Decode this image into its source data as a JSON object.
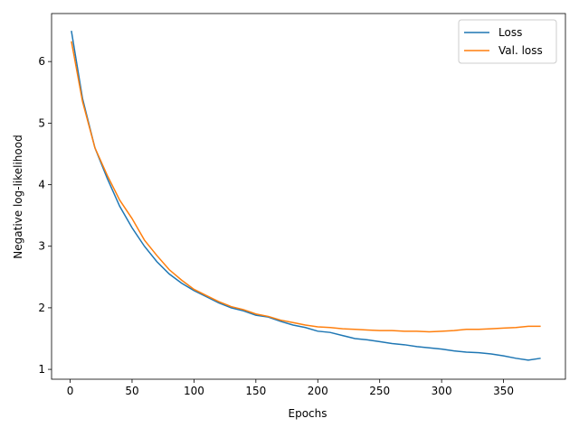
{
  "chart_data": {
    "type": "line",
    "xlabel": "Epochs",
    "ylabel": "Negative log-likelihood",
    "x": [
      1,
      10,
      20,
      30,
      40,
      50,
      60,
      70,
      80,
      90,
      100,
      110,
      120,
      130,
      140,
      150,
      160,
      170,
      180,
      190,
      200,
      210,
      220,
      230,
      240,
      250,
      260,
      270,
      280,
      290,
      300,
      310,
      320,
      330,
      340,
      350,
      360,
      370,
      380
    ],
    "series": [
      {
        "name": "Loss",
        "color": "#1f77b4",
        "values": [
          6.5,
          5.4,
          4.6,
          4.1,
          3.65,
          3.3,
          3.0,
          2.75,
          2.55,
          2.4,
          2.28,
          2.18,
          2.08,
          2.0,
          1.95,
          1.88,
          1.85,
          1.78,
          1.72,
          1.68,
          1.62,
          1.6,
          1.55,
          1.5,
          1.48,
          1.45,
          1.42,
          1.4,
          1.37,
          1.35,
          1.33,
          1.3,
          1.28,
          1.27,
          1.25,
          1.22,
          1.18,
          1.15,
          1.18
        ]
      },
      {
        "name": "Val. loss",
        "color": "#ff7f0e",
        "values": [
          6.33,
          5.35,
          4.6,
          4.15,
          3.75,
          3.45,
          3.1,
          2.85,
          2.62,
          2.45,
          2.3,
          2.2,
          2.1,
          2.02,
          1.97,
          1.9,
          1.86,
          1.8,
          1.76,
          1.72,
          1.69,
          1.68,
          1.66,
          1.65,
          1.64,
          1.63,
          1.63,
          1.62,
          1.62,
          1.61,
          1.62,
          1.63,
          1.65,
          1.65,
          1.66,
          1.67,
          1.68,
          1.7,
          1.7
        ]
      }
    ],
    "xlim": [
      -15,
      400
    ],
    "xticks": [
      0,
      50,
      100,
      150,
      200,
      250,
      300,
      350
    ],
    "ylim": [
      0.84,
      6.78
    ],
    "yticks": [
      1,
      2,
      3,
      4,
      5,
      6
    ],
    "legend": "upper right"
  }
}
